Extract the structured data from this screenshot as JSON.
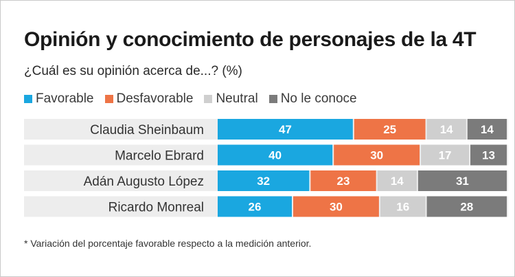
{
  "title": "Opinión y conocimiento de personajes de la 4T",
  "subtitle": "¿Cuál es su opinión acerca de...? (%)",
  "footnote": "* Variación del porcentaje favorable respecto a la medición anterior.",
  "colors": {
    "favorable": "#1aa7e0",
    "desfavorable": "#ee7446",
    "neutral": "#cfcfcf",
    "no_conoce": "#7b7b7b",
    "row_background": "#ededed"
  },
  "chart_data": {
    "type": "bar",
    "orientation": "horizontal",
    "stacked": true,
    "categories": [
      "Claudia Sheinbaum",
      "Marcelo Ebrard",
      "Adán Augusto López",
      "Ricardo Monreal"
    ],
    "series": [
      {
        "name": "Favorable",
        "color": "#1aa7e0",
        "label_color": "#ffffff",
        "values": [
          47,
          40,
          32,
          26
        ]
      },
      {
        "name": "Desfavorable",
        "color": "#ee7446",
        "label_color": "#ffffff",
        "values": [
          25,
          30,
          23,
          30
        ]
      },
      {
        "name": "Neutral",
        "color": "#cfcfcf",
        "label_color": "#ffffff",
        "values": [
          14,
          17,
          14,
          16
        ]
      },
      {
        "name": "No le conoce",
        "color": "#7b7b7b",
        "label_color": "#ffffff",
        "values": [
          14,
          13,
          31,
          28
        ]
      }
    ],
    "legend": "top-left",
    "grid": false
  }
}
